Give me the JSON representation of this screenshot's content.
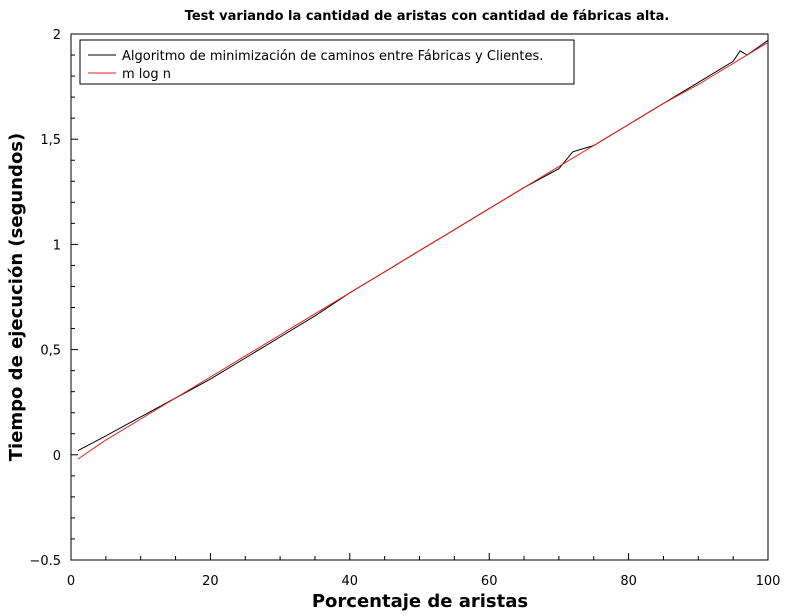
{
  "chart_data": {
    "type": "line",
    "title": "Test variando la cantidad de aristas con cantidad de fábricas alta.",
    "xlabel": "Porcentaje de aristas",
    "ylabel": "Tiempo de ejecución (segundos)",
    "xlim": [
      0,
      100
    ],
    "ylim": [
      -0.5,
      2
    ],
    "xticks": [
      0,
      20,
      40,
      60,
      80,
      100
    ],
    "xtick_labels": [
      "0",
      "20",
      "40",
      "60",
      "80",
      "100"
    ],
    "yticks": [
      -0.5,
      0,
      0.5,
      1,
      1.5,
      2
    ],
    "ytick_labels": [
      "−0.5",
      "0",
      "0,5",
      "1",
      "1,5",
      "2"
    ],
    "grid": false,
    "legend_position": "top-left",
    "x": [
      1,
      5,
      10,
      15,
      20,
      25,
      30,
      35,
      40,
      45,
      50,
      55,
      60,
      65,
      70,
      72,
      75,
      80,
      85,
      90,
      95,
      96,
      97,
      100
    ],
    "series": [
      {
        "name": "Algoritmo de minimización de caminos entre Fábricas y Clientes.",
        "color": "#000000",
        "values": [
          0.02,
          0.09,
          0.18,
          0.27,
          0.36,
          0.46,
          0.56,
          0.66,
          0.77,
          0.87,
          0.97,
          1.07,
          1.17,
          1.27,
          1.36,
          1.44,
          1.47,
          1.57,
          1.67,
          1.77,
          1.87,
          1.92,
          1.9,
          1.97
        ]
      },
      {
        "name": "m log n",
        "color": "#e8201c",
        "values": [
          -0.02,
          0.07,
          0.17,
          0.27,
          0.37,
          0.47,
          0.57,
          0.67,
          0.77,
          0.87,
          0.97,
          1.07,
          1.17,
          1.27,
          1.37,
          1.41,
          1.47,
          1.57,
          1.67,
          1.76,
          1.86,
          1.88,
          1.9,
          1.96
        ]
      }
    ]
  }
}
